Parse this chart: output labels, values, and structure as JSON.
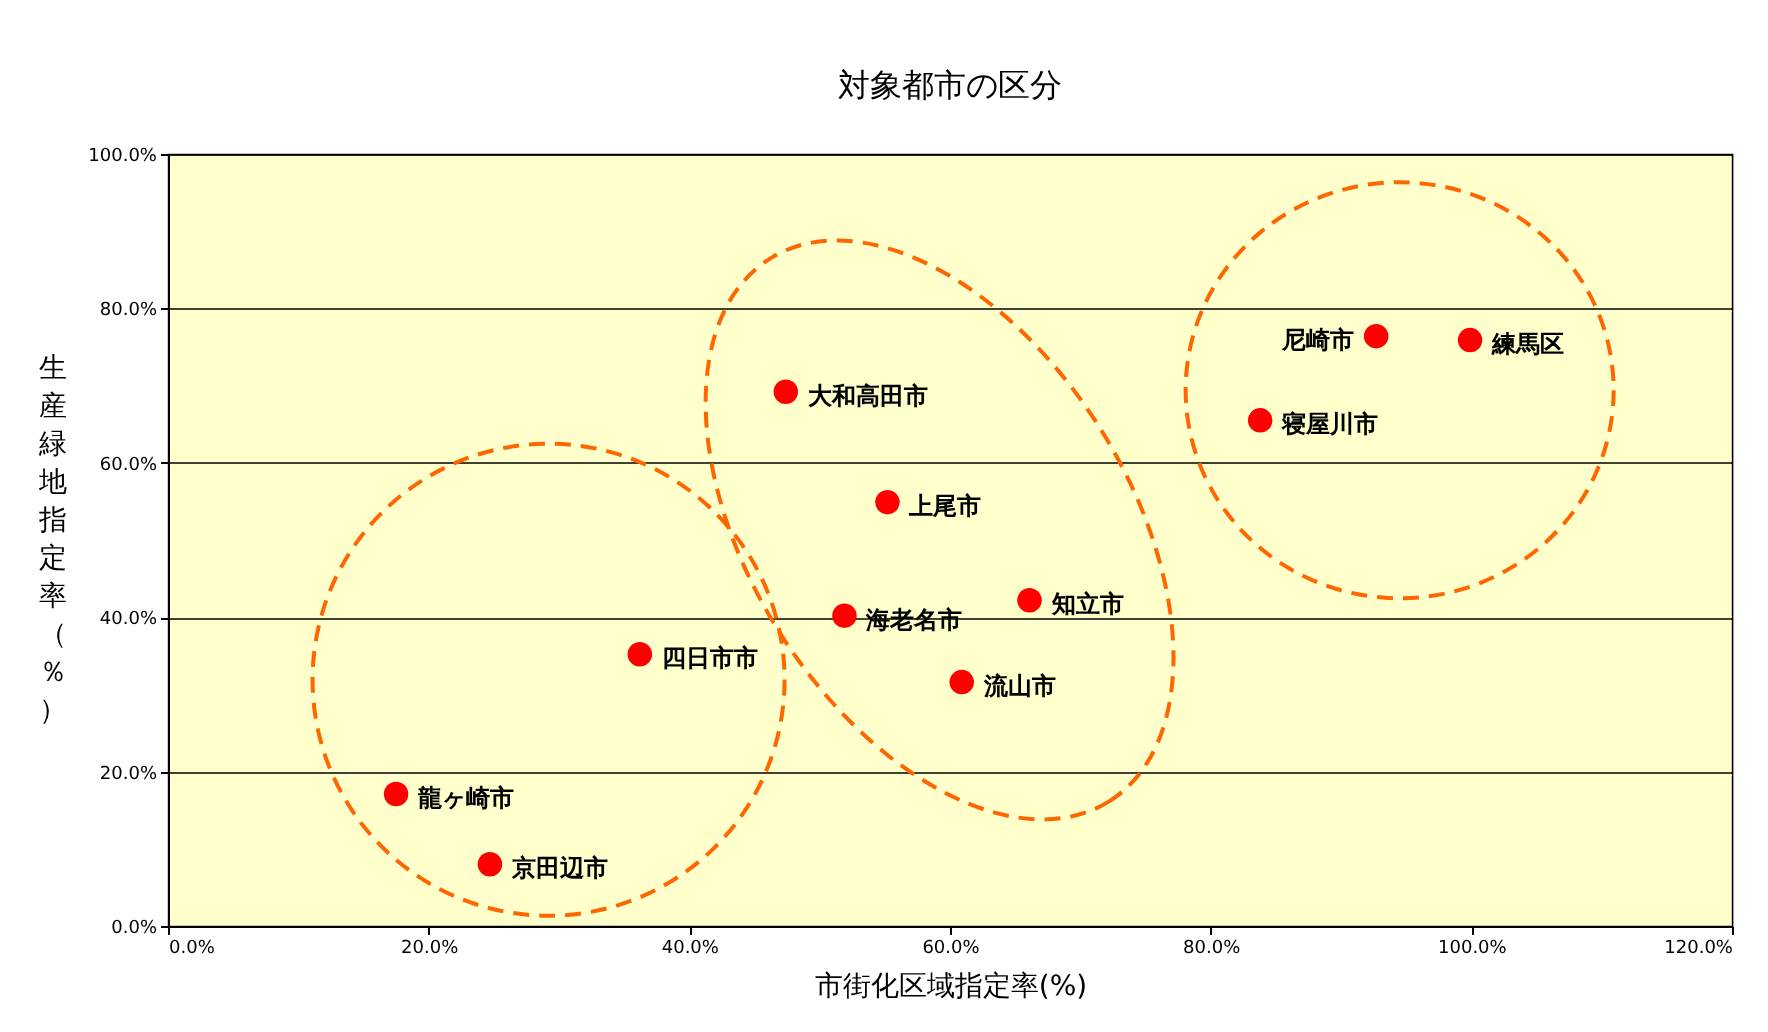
{
  "chart_data": {
    "type": "scatter",
    "title": "対象都市の区分",
    "xlabel": "市街化区域指定率(%)",
    "ylabel": "生産緑地指定率（％）",
    "x": [
      17.5,
      24.7,
      36.2,
      47.4,
      55.2,
      51.9,
      66.1,
      60.9,
      92.7,
      99.9,
      83.8
    ],
    "series": [
      {
        "color": "#ff0000",
        "values": [
          17.1,
          8.0,
          35.2,
          69.2,
          54.9,
          40.2,
          42.2,
          31.6,
          76.4,
          75.9,
          65.5
        ]
      }
    ],
    "annotations": [
      {
        "text": "龍ヶ崎市",
        "x": 17.5,
        "y": 17.1
      },
      {
        "text": "京田辺市",
        "x": 24.7,
        "y": 8.0
      },
      {
        "text": "四日市市",
        "x": 36.2,
        "y": 35.2
      },
      {
        "text": "大和高田市",
        "x": 47.4,
        "y": 69.2
      },
      {
        "text": "上尾市",
        "x": 55.2,
        "y": 54.9
      },
      {
        "text": "海老名市",
        "x": 51.9,
        "y": 40.2
      },
      {
        "text": "知立市",
        "x": 66.1,
        "y": 42.2
      },
      {
        "text": "流山市",
        "x": 60.9,
        "y": 31.6
      },
      {
        "text": "尼崎市",
        "x": 92.7,
        "y": 76.4
      },
      {
        "text": "練馬区",
        "x": 99.9,
        "y": 75.9
      },
      {
        "text": "寝屋川市",
        "x": 83.8,
        "y": 65.5
      }
    ],
    "xlim": [
      0,
      120
    ],
    "xticks": [
      {
        "value": 0,
        "label": "0.0%"
      },
      {
        "value": 20,
        "label": "20.0%"
      },
      {
        "value": 40,
        "label": "40.0%"
      },
      {
        "value": 60,
        "label": "60.0%"
      },
      {
        "value": 80,
        "label": "80.0%"
      },
      {
        "value": 100,
        "label": "100.0%"
      },
      {
        "value": 120,
        "label": "120.0%"
      }
    ],
    "ylim": [
      0,
      100
    ],
    "yticks": [
      {
        "value": 0,
        "label": "0.0%"
      },
      {
        "value": 20,
        "label": "20.0%"
      },
      {
        "value": 40,
        "label": "40.0%"
      },
      {
        "value": 60,
        "label": "60.0%"
      },
      {
        "value": 80,
        "label": "80.0%"
      },
      {
        "value": 100,
        "label": "100.0%"
      }
    ],
    "grid": "y",
    "marker": "circle"
  }
}
